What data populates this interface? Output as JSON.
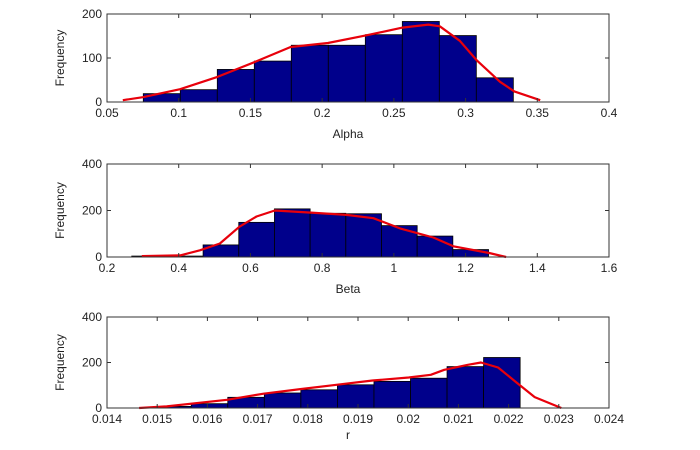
{
  "colors": {
    "bar": "#00008b",
    "bar_edge": "#000000",
    "fit": "#e8000b",
    "axis": "#333333"
  },
  "chart_data": [
    {
      "type": "bar",
      "title": "",
      "xlabel": "Alpha",
      "ylabel": "Frequency",
      "xlim": [
        0.05,
        0.4
      ],
      "ylim": [
        0,
        200
      ],
      "xticks": [
        0.05,
        0.1,
        0.15,
        0.2,
        0.25,
        0.3,
        0.35,
        0.4
      ],
      "xtick_labels": [
        "0.05",
        "0.1",
        "0.15",
        "0.2",
        "0.25",
        "0.3",
        "0.35",
        "0.4"
      ],
      "yticks": [
        0,
        100,
        200
      ],
      "ytick_labels": [
        "0",
        "100",
        "200"
      ],
      "bin_start": 0.0753,
      "bin_width": 0.0258,
      "values": [
        19,
        28,
        74,
        93,
        129,
        129,
        153,
        183,
        151,
        55
      ],
      "fit_curve": {
        "x": [
          0.061,
          0.075,
          0.101,
          0.127,
          0.153,
          0.178,
          0.204,
          0.23,
          0.256,
          0.274,
          0.282,
          0.296,
          0.308,
          0.324,
          0.334,
          0.352
        ],
        "y": [
          4,
          11,
          29,
          57,
          91,
          125,
          134,
          151,
          169,
          176,
          172,
          139,
          94,
          46,
          24,
          4
        ]
      }
    },
    {
      "type": "bar",
      "title": "",
      "xlabel": "Beta",
      "ylabel": "Frequency",
      "xlim": [
        0.2,
        1.6
      ],
      "ylim": [
        0,
        400
      ],
      "xticks": [
        0.2,
        0.4,
        0.6,
        0.8,
        1.0,
        1.2,
        1.4,
        1.6
      ],
      "xtick_labels": [
        "0.2",
        "0.4",
        "0.6",
        "0.8",
        "1",
        "1.2",
        "1.4",
        "1.6"
      ],
      "yticks": [
        0,
        200,
        400
      ],
      "ytick_labels": [
        "0",
        "200",
        "400"
      ],
      "bin_start": 0.269,
      "bin_width": 0.0995,
      "values": [
        4,
        4,
        52,
        149,
        207,
        188,
        186,
        135,
        90,
        32
      ],
      "fit_curve": {
        "x": [
          0.297,
          0.404,
          0.459,
          0.515,
          0.569,
          0.617,
          0.668,
          0.769,
          0.868,
          0.943,
          1.017,
          1.11,
          1.166,
          1.266,
          1.313
        ],
        "y": [
          4,
          7,
          29,
          58,
          130,
          174,
          200,
          191,
          181,
          167,
          123,
          84,
          46,
          17,
          0
        ]
      }
    },
    {
      "type": "bar",
      "title": "",
      "xlabel": "r",
      "ylabel": "Frequency",
      "xlim": [
        0.014,
        0.024
      ],
      "ylim": [
        0,
        400
      ],
      "xticks": [
        0.014,
        0.015,
        0.016,
        0.017,
        0.018,
        0.019,
        0.02,
        0.021,
        0.022,
        0.023,
        0.024
      ],
      "xtick_labels": [
        "0.014",
        "0.015",
        "0.016",
        "0.017",
        "0.018",
        "0.019",
        "0.02",
        "0.021",
        "0.022",
        "0.023",
        "0.024"
      ],
      "yticks": [
        0,
        200,
        400
      ],
      "ytick_labels": [
        "0",
        "200",
        "400"
      ],
      "bin_start": 0.01495,
      "bin_width": 0.000728,
      "values": [
        7,
        19,
        47,
        66,
        80,
        102,
        117,
        131,
        182,
        222
      ],
      "fit_curve": {
        "x": [
          0.01464,
          0.01519,
          0.01639,
          0.01712,
          0.01785,
          0.01857,
          0.01929,
          0.02001,
          0.02045,
          0.02072,
          0.02119,
          0.02145,
          0.02179,
          0.02217,
          0.02252,
          0.02305
        ],
        "y": [
          0,
          7,
          36,
          63,
          83,
          102,
          121,
          134,
          146,
          168,
          190,
          200,
          178,
          110,
          48,
          0
        ]
      }
    }
  ]
}
